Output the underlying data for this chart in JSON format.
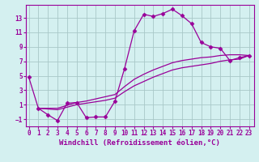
{
  "background_color": "#d4f0f0",
  "grid_color": "#a8c8c8",
  "line_color": "#990099",
  "marker": "D",
  "marker_size": 2.5,
  "line_width": 0.9,
  "xlabel": "Windchill (Refroidissement éolien,°C)",
  "xlabel_fontsize": 6.5,
  "yticks": [
    -1,
    1,
    3,
    5,
    7,
    9,
    11,
    13
  ],
  "xticks": [
    0,
    1,
    2,
    3,
    4,
    5,
    6,
    7,
    8,
    9,
    10,
    11,
    12,
    13,
    14,
    15,
    16,
    17,
    18,
    19,
    20,
    21,
    22,
    23
  ],
  "xlim": [
    -0.3,
    23.5
  ],
  "ylim": [
    -2.0,
    14.8
  ],
  "series1_x": [
    0,
    1,
    2,
    3,
    4,
    5,
    6,
    7,
    8,
    9,
    10,
    11,
    12,
    13,
    14,
    15,
    16,
    17,
    18,
    19,
    20,
    21,
    22,
    23
  ],
  "series1_y": [
    4.8,
    0.5,
    -0.4,
    -1.2,
    1.2,
    1.3,
    -0.8,
    -0.7,
    -0.7,
    1.5,
    6.0,
    11.2,
    13.5,
    13.2,
    13.6,
    14.2,
    13.3,
    12.2,
    9.6,
    9.0,
    8.8,
    7.1,
    7.5,
    7.8
  ],
  "series2_x": [
    1,
    3,
    5,
    6,
    7,
    8,
    9,
    10,
    11,
    12,
    13,
    14,
    15,
    16,
    17,
    18,
    19,
    20,
    21,
    22,
    23
  ],
  "series2_y": [
    0.5,
    0.5,
    1.3,
    1.5,
    1.8,
    2.1,
    2.4,
    3.5,
    4.5,
    5.2,
    5.8,
    6.3,
    6.8,
    7.1,
    7.3,
    7.5,
    7.6,
    7.8,
    7.9,
    7.9,
    7.8
  ],
  "series3_x": [
    1,
    3,
    5,
    6,
    7,
    8,
    9,
    10,
    11,
    12,
    13,
    14,
    15,
    16,
    17,
    18,
    19,
    20,
    21,
    22,
    23
  ],
  "series3_y": [
    0.5,
    0.3,
    1.0,
    1.2,
    1.4,
    1.6,
    1.9,
    2.8,
    3.6,
    4.2,
    4.8,
    5.3,
    5.8,
    6.1,
    6.3,
    6.5,
    6.7,
    7.0,
    7.2,
    7.3,
    7.8
  ]
}
